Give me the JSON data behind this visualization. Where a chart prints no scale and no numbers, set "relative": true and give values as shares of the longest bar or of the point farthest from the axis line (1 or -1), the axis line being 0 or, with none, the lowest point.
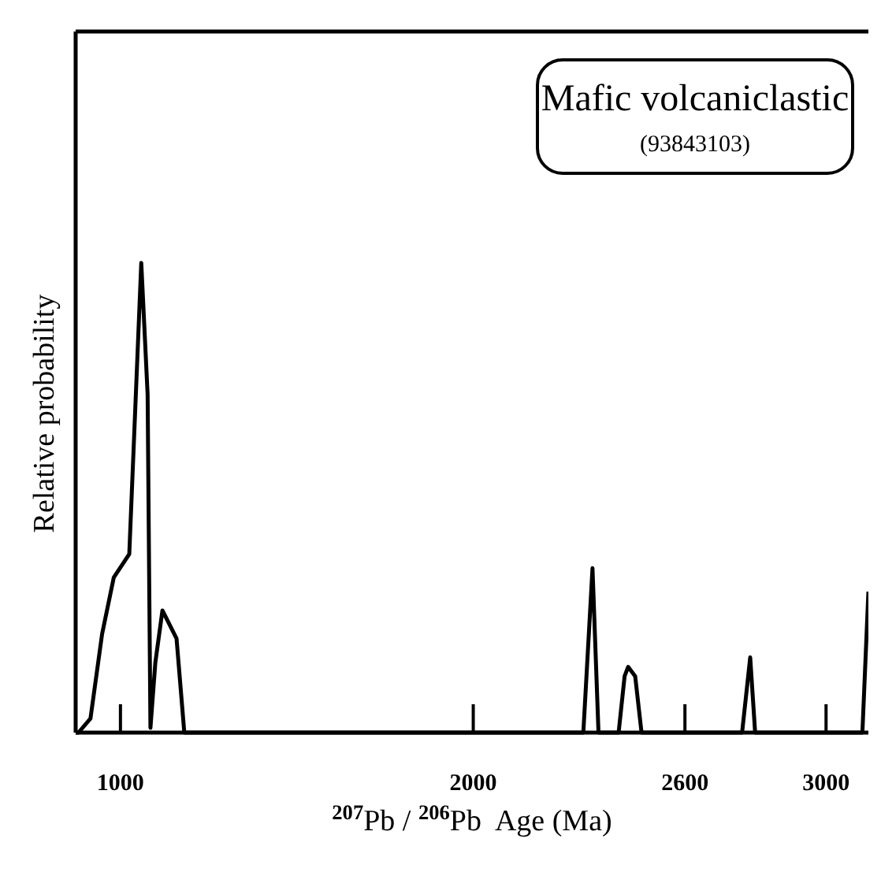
{
  "chart_data": {
    "type": "line",
    "title": "Mafic volcaniclastic",
    "subtitle": "(93843103)",
    "xlabel": "$^{207}$Pb / $^{206}$Pb  Age (Ma)",
    "ylabel": "Relative probability",
    "relative": true,
    "x": [
      873,
      881,
      915,
      948,
      981,
      1025,
      1059,
      1077,
      1085,
      1099,
      1119,
      1159,
      1181,
      2312,
      2338,
      2355,
      2412,
      2429,
      2439,
      2459,
      2477,
      2762,
      2785,
      2799,
      3103,
      3120
    ],
    "series": [
      {
        "color": "#000000",
        "values": [
          0,
          0,
          0.03,
          0.21,
          0.33,
          0.38,
          1,
          0.72,
          0.01,
          0.15,
          0.26,
          0.2,
          0,
          0,
          0.35,
          0,
          0,
          0.12,
          0.14,
          0.12,
          0,
          0,
          0.16,
          0,
          0,
          0.3
        ]
      }
    ],
    "xlim": [
      873,
      3120
    ],
    "xticks": [
      1000,
      2000,
      2600,
      3000
    ],
    "grid": false,
    "marker": "none",
    "line_style": "solid"
  }
}
